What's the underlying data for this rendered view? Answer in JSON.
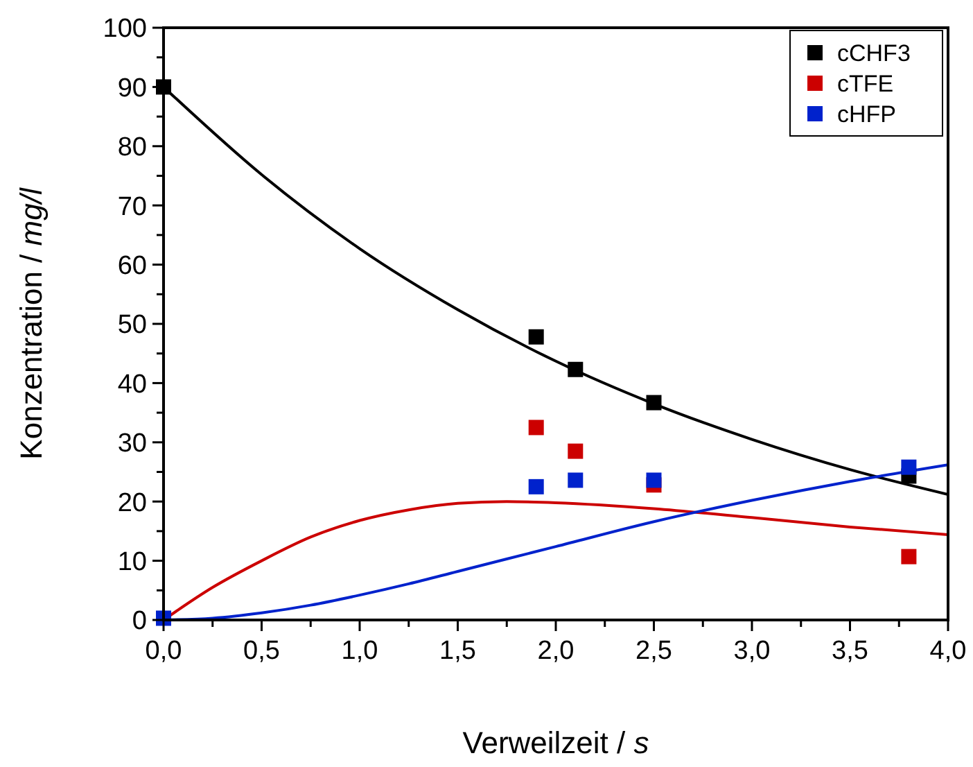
{
  "chart_data": {
    "type": "scatter",
    "xlabel": "Verweilzeit / s",
    "ylabel": "Konzentration / mg/l",
    "xlim": [
      0,
      4
    ],
    "ylim": [
      0,
      100
    ],
    "xticks": [
      {
        "value": 0,
        "label": "0,0"
      },
      {
        "value": 0.5,
        "label": "0,5"
      },
      {
        "value": 1,
        "label": "1,0"
      },
      {
        "value": 1.5,
        "label": "1,5"
      },
      {
        "value": 2,
        "label": "2,0"
      },
      {
        "value": 2.5,
        "label": "2,5"
      },
      {
        "value": 3,
        "label": "3,0"
      },
      {
        "value": 3.5,
        "label": "3,5"
      },
      {
        "value": 4,
        "label": "4,0"
      }
    ],
    "yticks": [
      0,
      10,
      20,
      30,
      40,
      50,
      60,
      70,
      80,
      90,
      100
    ],
    "legend": "top right",
    "marker": "square",
    "grid": false,
    "series": [
      {
        "type": "line",
        "marker": "none",
        "color": "#000000",
        "x": [
          0,
          0.5,
          1,
          1.5,
          2,
          2.5,
          3,
          3.5,
          4
        ],
        "values": [
          90,
          75.2,
          62.7,
          52.4,
          43.7,
          36.5,
          30.5,
          25.4,
          21.2
        ]
      },
      {
        "type": "line",
        "marker": "none",
        "color": "#cc0000",
        "x": [
          0,
          0.25,
          0.5,
          0.75,
          1,
          1.25,
          1.5,
          1.75,
          2,
          2.5,
          3,
          3.5,
          4
        ],
        "values": [
          0,
          5.5,
          10,
          14,
          16.8,
          18.6,
          19.7,
          20,
          19.8,
          18.8,
          17.3,
          15.7,
          14.4
        ]
      },
      {
        "type": "line",
        "marker": "none",
        "color": "#0022cc",
        "x": [
          0,
          0.25,
          0.5,
          0.75,
          1,
          1.25,
          1.5,
          1.75,
          2,
          2.5,
          3,
          3.5,
          4
        ],
        "values": [
          0,
          0.3,
          1.2,
          2.5,
          4.2,
          6.1,
          8.2,
          10.3,
          12.4,
          16.6,
          20.2,
          23.4,
          26.2
        ]
      },
      {
        "name": "cCHF3",
        "color": "#000000",
        "x": [
          0,
          1.9,
          2.1,
          2.5,
          3.8
        ],
        "values": [
          90,
          47.8,
          42.3,
          36.7,
          24.3
        ]
      },
      {
        "name": "cTFE",
        "color": "#cc0000",
        "x": [
          1.9,
          2.1,
          2.5,
          3.8
        ],
        "values": [
          32.5,
          28.5,
          22.8,
          10.7
        ]
      },
      {
        "name": "cHFP",
        "color": "#0022cc",
        "x": [
          0,
          1.9,
          2.1,
          2.5,
          3.8
        ],
        "values": [
          0.3,
          22.5,
          23.6,
          23.6,
          25.8
        ]
      }
    ]
  }
}
